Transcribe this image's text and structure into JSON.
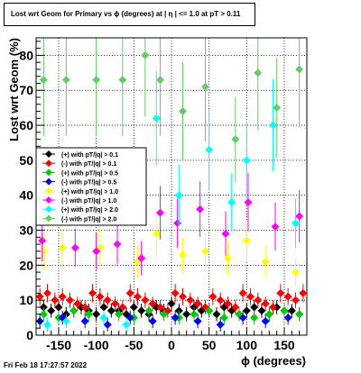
{
  "chart_data": {
    "type": "scatter",
    "title": "Lost wrt Geom for Primary vs ϕ (degrees) at | η | <= 1.0 at pT > 0.11",
    "xlabel": "ϕ (degrees)",
    "ylabel": "Lost wrt Geom (%)",
    "xlim": [
      -180,
      180
    ],
    "ylim": [
      0,
      85
    ],
    "xticks": [
      -150,
      -100,
      -50,
      0,
      50,
      100,
      150
    ],
    "yticks": [
      0,
      10,
      20,
      30,
      40,
      50,
      60,
      70,
      80
    ],
    "grid": true,
    "legend_position": "left",
    "series": [
      {
        "name": "(+) with pT/|q| > 0.1",
        "color": "#000000",
        "marker": "diamond",
        "x": [
          -170,
          -160,
          -150,
          -140,
          -130,
          -120,
          -110,
          -100,
          -90,
          -80,
          -70,
          -60,
          -50,
          -40,
          -30,
          -20,
          -10,
          0,
          10,
          20,
          30,
          40,
          50,
          60,
          70,
          80,
          90,
          100,
          110,
          120,
          130,
          140,
          150,
          160,
          170
        ],
        "y": [
          8,
          7,
          8,
          6,
          7,
          8,
          7,
          6,
          8,
          7,
          7,
          6,
          8,
          7,
          6,
          8,
          7,
          9,
          7,
          6,
          8,
          7,
          7,
          6,
          8,
          7,
          6,
          7,
          8,
          7,
          6,
          8,
          7,
          7,
          6
        ]
      },
      {
        "name": "(-) with pT/|q| > 0.1",
        "color": "#ff0000",
        "marker": "diamond",
        "x": [
          -175,
          -165,
          -155,
          -145,
          -135,
          -125,
          -115,
          -105,
          -95,
          -85,
          -75,
          -65,
          -55,
          -45,
          -35,
          -25,
          -15,
          -5,
          5,
          15,
          25,
          35,
          45,
          55,
          65,
          75,
          85,
          95,
          105,
          115,
          125,
          135,
          145,
          155,
          165,
          175
        ],
        "y": [
          11,
          12,
          10,
          11,
          10,
          9,
          8,
          12,
          11,
          10,
          9,
          8,
          12,
          11,
          10,
          9,
          8,
          7,
          12,
          11,
          10,
          9,
          8,
          11,
          10,
          9,
          8,
          12,
          11,
          10,
          9,
          8,
          12,
          11,
          10,
          12
        ]
      },
      {
        "name": "(+) with pT/|q| > 0.5",
        "color": "#00cc00",
        "marker": "diamond",
        "x": [
          -170,
          -150,
          -130,
          -110,
          -90,
          -70,
          -50,
          -30,
          -10,
          10,
          30,
          50,
          70,
          90,
          110,
          130,
          150,
          170
        ],
        "y": [
          6,
          5,
          7,
          6,
          5,
          6,
          5,
          7,
          6,
          5,
          6,
          7,
          5,
          6,
          5,
          6,
          7,
          6
        ]
      },
      {
        "name": "(-) with pT/|q| > 0.5",
        "color": "#0000ff",
        "marker": "diamond",
        "x": [
          -175,
          -145,
          -115,
          -85,
          -55,
          -25,
          5,
          35,
          65,
          95,
          125,
          155
        ],
        "y": [
          4,
          5,
          4,
          3,
          5,
          4,
          5,
          4,
          3,
          5,
          4,
          5
        ]
      },
      {
        "name": "(+) with pT/|q| > 1.0",
        "color": "#ffff00",
        "marker": "diamond",
        "x": [
          -170,
          -145,
          -95,
          -45,
          -20,
          15,
          45,
          75,
          100,
          125,
          165
        ],
        "y": [
          24,
          25,
          25,
          21,
          29,
          23,
          24,
          22,
          27,
          21,
          18
        ]
      },
      {
        "name": "(-) with pT/|q| > 1.0",
        "color": "#ff00ff",
        "marker": "diamond",
        "x": [
          -172,
          -128,
          -100,
          -72,
          -40,
          -15,
          8,
          38,
          72,
          102,
          138,
          170
        ],
        "y": [
          27,
          25,
          24,
          26,
          22,
          35,
          32,
          36,
          29,
          38,
          31,
          34
        ]
      },
      {
        "name": "(+) with pT/|q| > 2.0",
        "color": "#00ffff",
        "marker": "diamond",
        "x": [
          -165,
          -140,
          -90,
          -60,
          -20,
          10,
          50,
          80,
          100,
          135,
          165
        ],
        "y": [
          3,
          4,
          5,
          3,
          62,
          40,
          53,
          38,
          50,
          60,
          32
        ]
      },
      {
        "name": "(-) with pT/|q| > 2.0",
        "color": "#66cc66",
        "marker": "diamond",
        "x": [
          -170,
          -140,
          -100,
          -65,
          -35,
          -15,
          15,
          45,
          85,
          115,
          140,
          170
        ],
        "y": [
          73,
          73,
          73,
          73,
          80,
          73,
          64,
          71,
          56,
          75,
          65,
          76
        ]
      }
    ]
  },
  "footer": {
    "timestamp": "Fri Feb 18 17:27:57 2022"
  }
}
